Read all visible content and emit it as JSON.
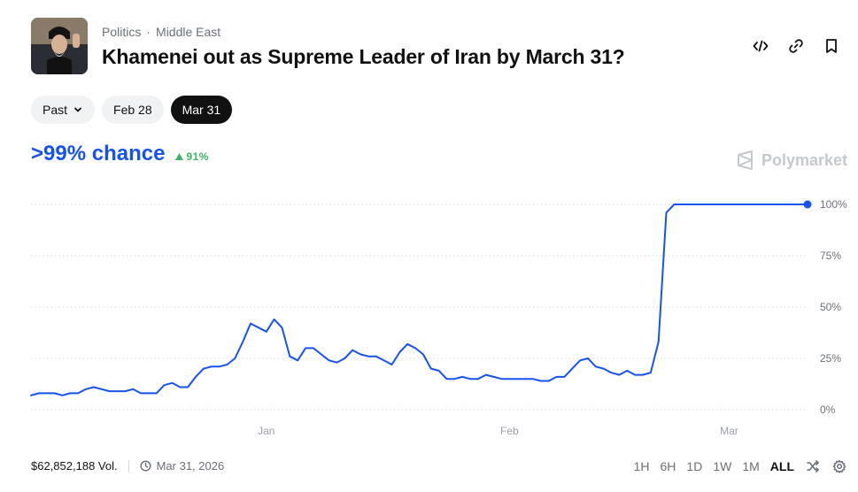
{
  "header": {
    "category": "Politics",
    "subcategory": "Middle East",
    "separator": "·",
    "title": "Khamenei out as Supreme Leader of Iran by March 31?"
  },
  "header_icons": [
    "embed-code-icon",
    "link-icon",
    "bookmark-icon"
  ],
  "date_filters": [
    {
      "label": "Past",
      "has_dropdown": true,
      "active": false
    },
    {
      "label": "Feb 28",
      "active": false
    },
    {
      "label": "Mar 31",
      "active": true
    }
  ],
  "chance": {
    "value": ">99% chance",
    "change": "91%",
    "direction": "up"
  },
  "brand": {
    "name": "Polymarket"
  },
  "colors": {
    "line": "#1652f0",
    "up": "#3db468",
    "grid": "#d9dbe0",
    "muted": "#6b6f76"
  },
  "footer": {
    "volume": "$62,852,188 Vol.",
    "end_date": "Mar 31, 2026",
    "ranges": [
      "1H",
      "6H",
      "1D",
      "1W",
      "1M",
      "ALL"
    ],
    "active_range": "ALL"
  },
  "chart_data": {
    "type": "line",
    "title": "",
    "xlabel": "",
    "ylabel": "",
    "x_ticks": [
      "Jan",
      "Feb",
      "Mar"
    ],
    "y_ticks": [
      "0%",
      "25%",
      "50%",
      "75%",
      "100%"
    ],
    "ylim": [
      0,
      100
    ],
    "x_range_days": [
      -30,
      69
    ],
    "x_tick_days": [
      0,
      31,
      59
    ],
    "grid": true,
    "series": [
      {
        "x": [
          -30,
          -29,
          -28,
          -27,
          -26,
          -25,
          -24,
          -23,
          -22,
          -21,
          -20,
          -19,
          -18,
          -17,
          -16,
          -15,
          -14,
          -13,
          -12,
          -11,
          -10,
          -9,
          -8,
          -7,
          -6,
          -5,
          -4,
          -3,
          -2,
          -1,
          0,
          1,
          2,
          3,
          4,
          5,
          6,
          7,
          8,
          9,
          10,
          11,
          12,
          13,
          14,
          15,
          16,
          17,
          18,
          19,
          20,
          21,
          22,
          23,
          24,
          25,
          26,
          27,
          28,
          29,
          30,
          31,
          32,
          33,
          34,
          35,
          36,
          37,
          38,
          39,
          40,
          41,
          42,
          43,
          44,
          45,
          46,
          47,
          48,
          49,
          50,
          51,
          52,
          53,
          54,
          55,
          56,
          57,
          58,
          59,
          60,
          61,
          62,
          63,
          64,
          65,
          66,
          67,
          68,
          69
        ],
        "y": [
          7,
          8,
          8,
          8,
          7,
          8,
          8,
          10,
          11,
          10,
          9,
          9,
          9,
          10,
          8,
          8,
          8,
          12,
          13,
          11,
          11,
          16,
          20,
          21,
          21,
          22,
          25,
          33,
          42,
          40,
          38,
          44,
          40,
          26,
          24,
          30,
          30,
          27,
          24,
          23,
          25,
          29,
          27,
          26,
          26,
          24,
          22,
          28,
          32,
          30,
          27,
          20,
          19,
          15,
          15,
          16,
          15,
          15,
          17,
          16,
          15,
          15,
          15,
          15,
          15,
          14,
          14,
          16,
          16,
          20,
          24,
          25,
          21,
          20,
          18,
          17,
          19,
          17,
          17,
          18,
          33,
          96,
          100,
          100,
          100,
          100,
          100,
          100,
          100,
          100,
          100,
          100,
          100,
          100,
          100,
          100,
          100,
          100,
          100,
          100
        ],
        "markers": "end"
      }
    ]
  }
}
